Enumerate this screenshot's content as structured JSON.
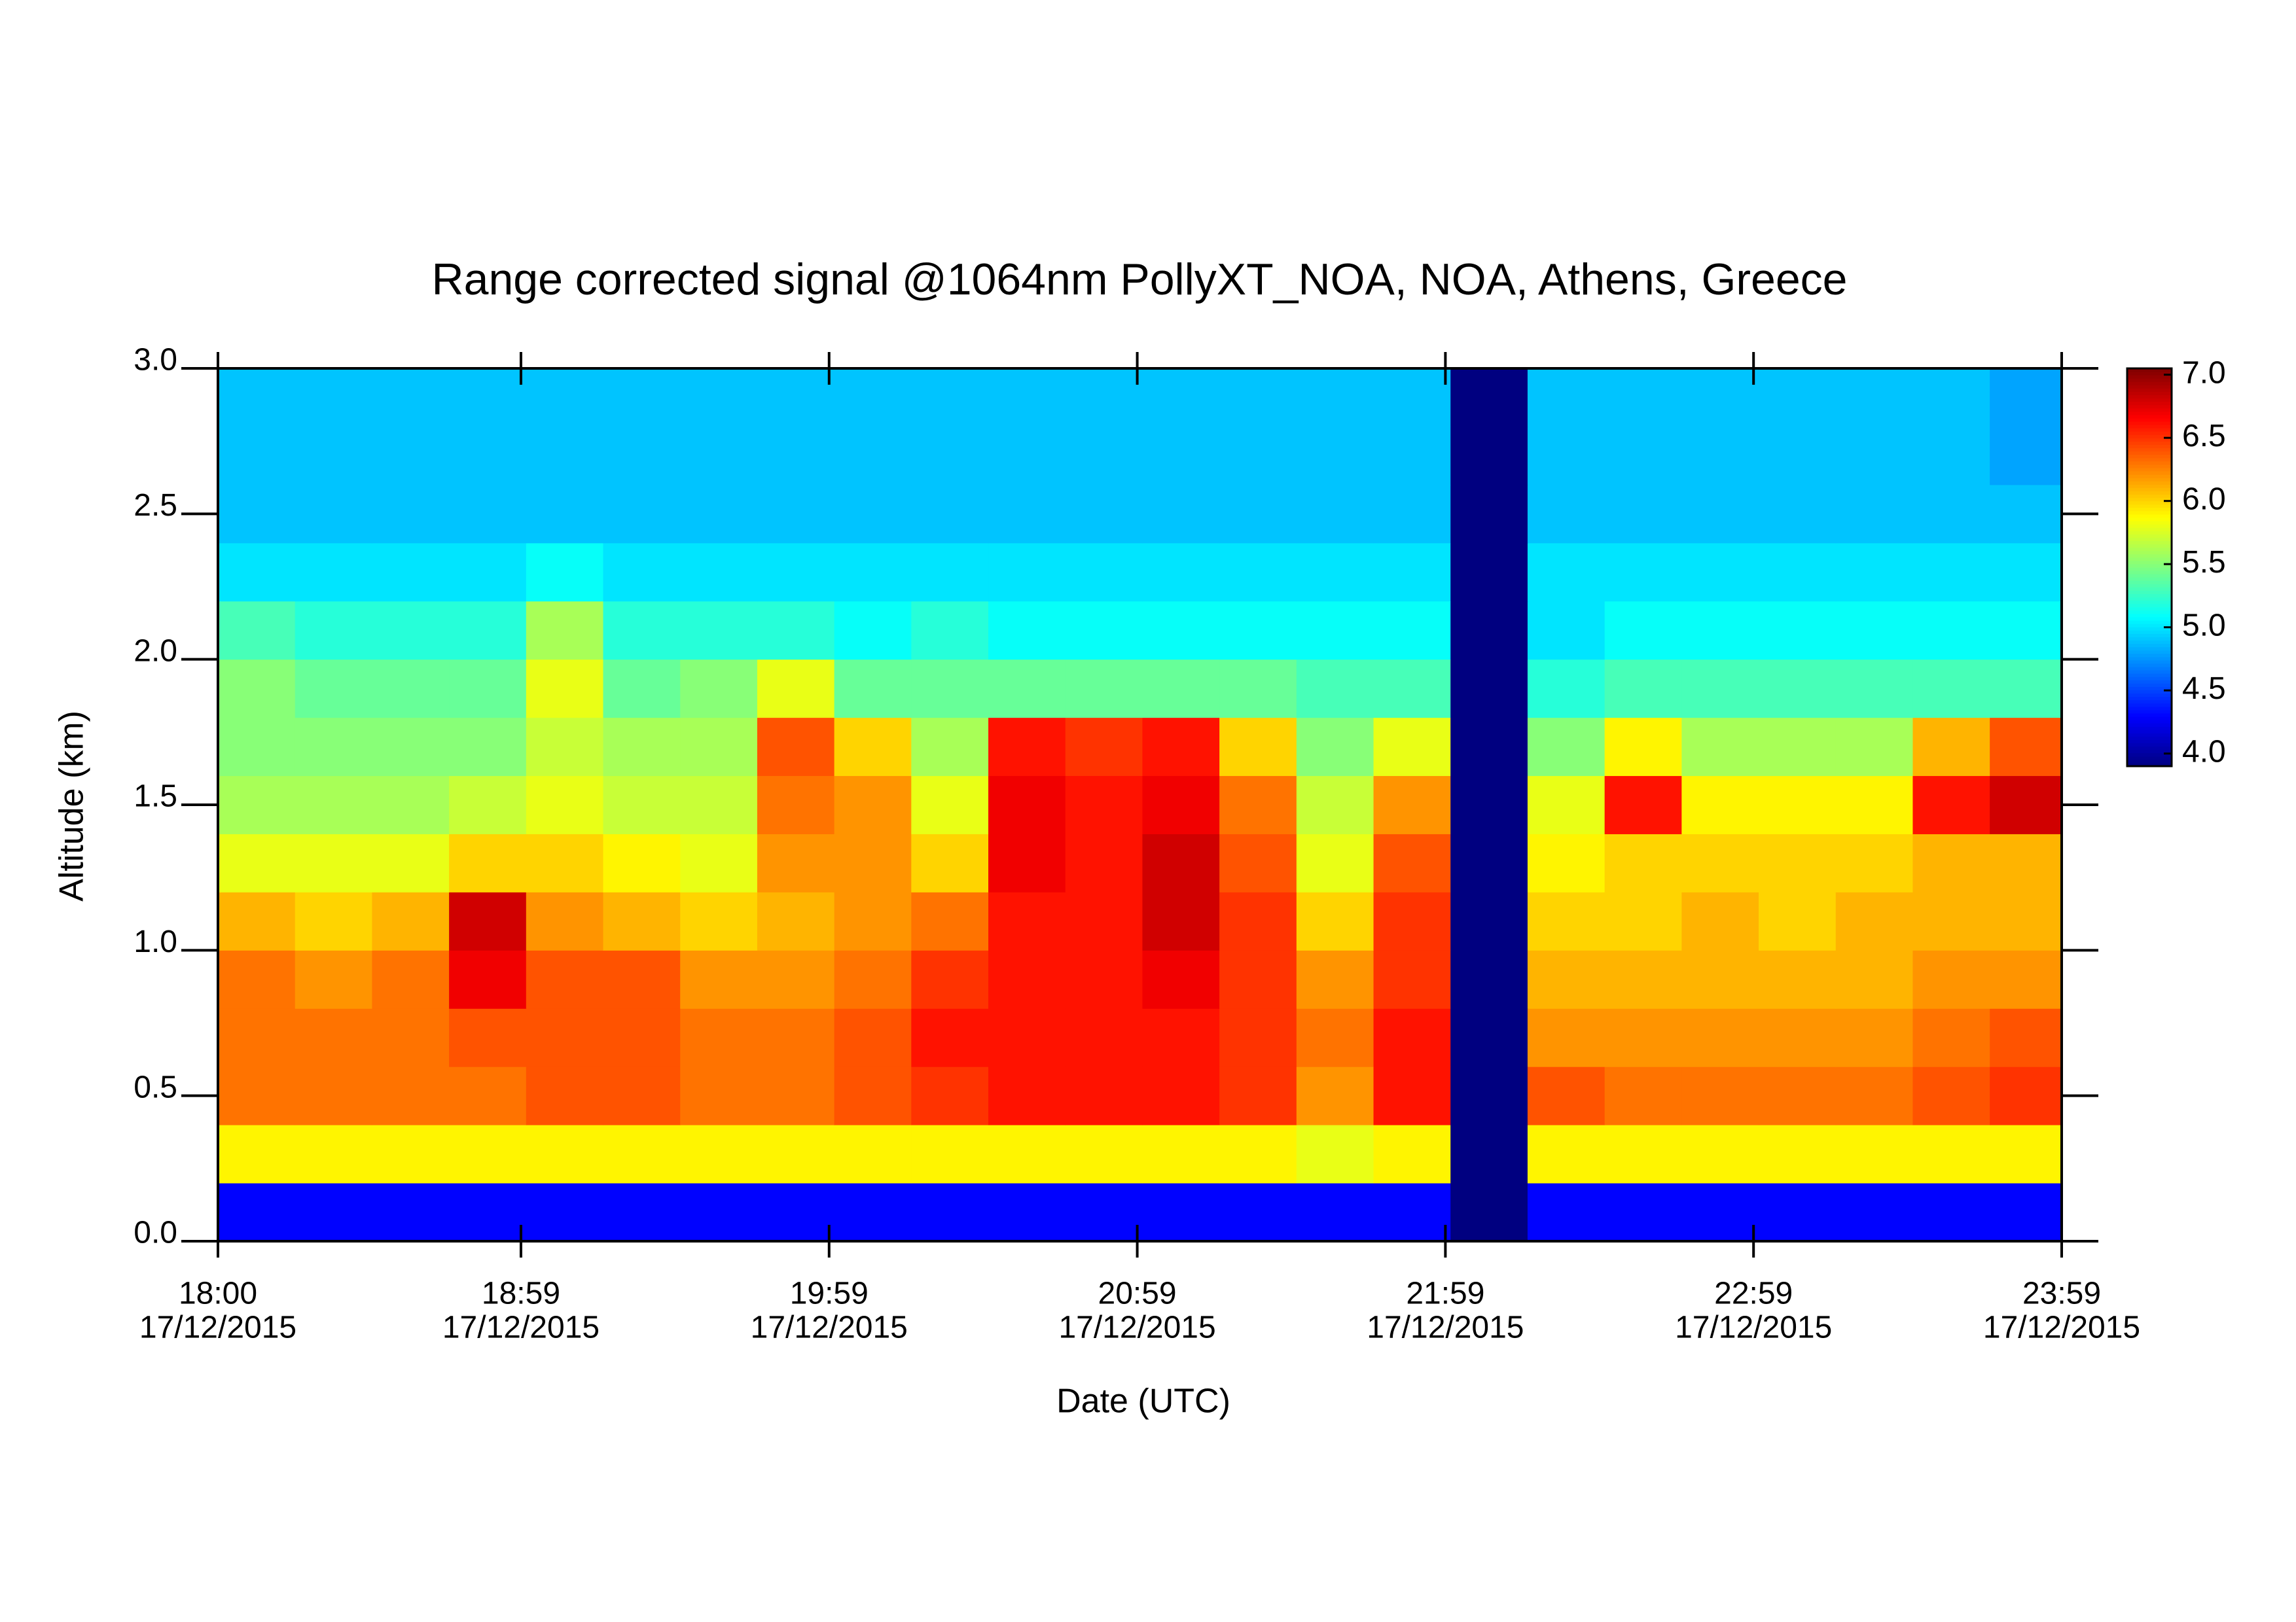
{
  "chart_data": {
    "type": "heatmap",
    "title": "Range corrected signal @1064nm  PollyXT_NOA, NOA, Athens, Greece",
    "x_label": "Date (UTC)",
    "y_label": "Altitude (km)",
    "colormap": "jet",
    "x": [
      "18:00",
      "18:15",
      "18:30",
      "18:45",
      "19:00",
      "19:15",
      "19:30",
      "19:45",
      "20:00",
      "20:15",
      "20:30",
      "20:45",
      "21:00",
      "21:15",
      "21:30",
      "21:45",
      "22:00",
      "22:15",
      "22:30",
      "22:45",
      "23:00",
      "23:15",
      "23:30",
      "23:45"
    ],
    "y": [
      0,
      0.2,
      0.4,
      0.6,
      0.8,
      1,
      1.2,
      1.4,
      1.6,
      1.8,
      2,
      2.2,
      2.4,
      2.6,
      2.8
    ],
    "z": [
      [
        4.3,
        4.3,
        4.3,
        4.3,
        4.3,
        4.3,
        4.3,
        4.3,
        4.3,
        4.3,
        4.3,
        4.3,
        4.3,
        4.3,
        4.3,
        4.3,
        3.9,
        4.3,
        4.3,
        4.3,
        4.3,
        4.3,
        4.3,
        4.3
      ],
      [
        5.9,
        5.9,
        5.9,
        5.9,
        5.9,
        5.9,
        5.9,
        5.9,
        5.9,
        5.9,
        5.9,
        5.9,
        5.9,
        5.9,
        5.8,
        5.9,
        3.9,
        5.9,
        5.9,
        5.9,
        5.9,
        5.9,
        5.9,
        5.9
      ],
      [
        6.3,
        6.3,
        6.3,
        6.3,
        6.4,
        6.4,
        6.3,
        6.3,
        6.4,
        6.5,
        6.6,
        6.6,
        6.6,
        6.5,
        6.2,
        6.6,
        3.9,
        6.4,
        6.3,
        6.3,
        6.3,
        6.3,
        6.4,
        6.5
      ],
      [
        6.3,
        6.3,
        6.3,
        6.4,
        6.4,
        6.4,
        6.3,
        6.3,
        6.4,
        6.6,
        6.6,
        6.6,
        6.6,
        6.5,
        6.3,
        6.6,
        3.9,
        6.2,
        6.2,
        6.2,
        6.2,
        6.2,
        6.3,
        6.4
      ],
      [
        6.3,
        6.2,
        6.3,
        6.7,
        6.4,
        6.4,
        6.2,
        6.2,
        6.3,
        6.5,
        6.6,
        6.6,
        6.7,
        6.5,
        6.2,
        6.5,
        3.9,
        6.1,
        6.1,
        6.1,
        6.1,
        6.1,
        6.2,
        6.2
      ],
      [
        6.1,
        6.0,
        6.1,
        6.8,
        6.2,
        6.1,
        6.0,
        6.1,
        6.2,
        6.3,
        6.6,
        6.6,
        6.8,
        6.5,
        6.0,
        6.5,
        3.9,
        6.0,
        6.0,
        6.1,
        6.0,
        6.1,
        6.1,
        6.1
      ],
      [
        5.8,
        5.8,
        5.8,
        6.0,
        6.0,
        5.9,
        5.8,
        6.2,
        6.2,
        6.0,
        6.7,
        6.6,
        6.8,
        6.4,
        5.8,
        6.4,
        3.9,
        5.9,
        6.0,
        6.0,
        6.0,
        6.0,
        6.1,
        6.1
      ],
      [
        5.6,
        5.6,
        5.6,
        5.7,
        5.8,
        5.7,
        5.7,
        6.3,
        6.2,
        5.8,
        6.7,
        6.6,
        6.7,
        6.3,
        5.7,
        6.2,
        3.9,
        5.8,
        6.6,
        5.9,
        5.9,
        5.9,
        6.6,
        6.8
      ],
      [
        5.5,
        5.5,
        5.5,
        5.5,
        5.7,
        5.6,
        5.6,
        6.4,
        6.0,
        5.6,
        6.6,
        6.5,
        6.6,
        6.0,
        5.5,
        5.8,
        3.9,
        5.5,
        5.9,
        5.6,
        5.6,
        5.6,
        6.1,
        6.4
      ],
      [
        5.5,
        5.4,
        5.4,
        5.4,
        5.8,
        5.4,
        5.5,
        5.8,
        5.4,
        5.4,
        5.4,
        5.4,
        5.4,
        5.4,
        5.3,
        5.3,
        3.9,
        5.2,
        5.3,
        5.3,
        5.3,
        5.3,
        5.3,
        5.3
      ],
      [
        5.3,
        5.2,
        5.2,
        5.2,
        5.6,
        5.2,
        5.2,
        5.2,
        5.1,
        5.2,
        5.1,
        5.1,
        5.1,
        5.1,
        5.1,
        5.1,
        3.9,
        5.0,
        5.1,
        5.1,
        5.1,
        5.1,
        5.1,
        5.1
      ],
      [
        5.0,
        5.0,
        5.0,
        5.0,
        5.1,
        5.0,
        5.0,
        5.0,
        5.0,
        5.0,
        5.0,
        5.0,
        5.0,
        5.0,
        5.0,
        5.0,
        3.9,
        5.0,
        5.0,
        5.0,
        5.0,
        5.0,
        5.0,
        5.0
      ],
      [
        4.9,
        4.9,
        4.9,
        4.9,
        4.9,
        4.9,
        4.9,
        4.9,
        4.9,
        4.9,
        4.9,
        4.9,
        4.9,
        4.9,
        4.9,
        4.9,
        3.9,
        4.9,
        4.9,
        4.9,
        4.9,
        4.9,
        4.9,
        4.9
      ],
      [
        4.9,
        4.9,
        4.9,
        4.9,
        4.9,
        4.9,
        4.9,
        4.9,
        4.9,
        4.9,
        4.9,
        4.9,
        4.9,
        4.9,
        4.9,
        4.9,
        3.9,
        4.9,
        4.9,
        4.9,
        4.9,
        4.9,
        4.9,
        4.8
      ],
      [
        4.9,
        4.9,
        4.9,
        4.9,
        4.9,
        4.9,
        4.9,
        4.9,
        4.9,
        4.9,
        4.9,
        4.9,
        4.9,
        4.9,
        4.9,
        4.9,
        3.9,
        4.9,
        4.9,
        4.9,
        4.9,
        4.9,
        4.9,
        4.8
      ]
    ],
    "xlim": [
      "18:00",
      "23:59"
    ],
    "xticks": [
      {
        "value": "18:00",
        "label": "17/12/2015"
      },
      {
        "value": "18:59",
        "label": "17/12/2015"
      },
      {
        "value": "19:59",
        "label": "17/12/2015"
      },
      {
        "value": "20:59",
        "label": "17/12/2015"
      },
      {
        "value": "21:59",
        "label": "17/12/2015"
      },
      {
        "value": "22:59",
        "label": "17/12/2015"
      },
      {
        "value": "23:59",
        "label": "17/12/2015"
      }
    ],
    "ylim": [
      0,
      3
    ],
    "yticks": [
      {
        "value": 0,
        "label": "0.0"
      },
      0.5,
      {
        "value": 1,
        "label": "1.0"
      },
      1.5,
      {
        "value": 2,
        "label": "2.0"
      },
      2.5,
      {
        "value": 3,
        "label": "3.0"
      }
    ],
    "zlim": [
      3.9,
      7.05
    ],
    "zticks": [
      {
        "value": 4,
        "label": "4.0"
      },
      4.5,
      {
        "value": 5,
        "label": "5.0"
      },
      5.5,
      {
        "value": 6,
        "label": "6.0"
      },
      6.5,
      {
        "value": 7,
        "label": "7.0"
      }
    ]
  }
}
